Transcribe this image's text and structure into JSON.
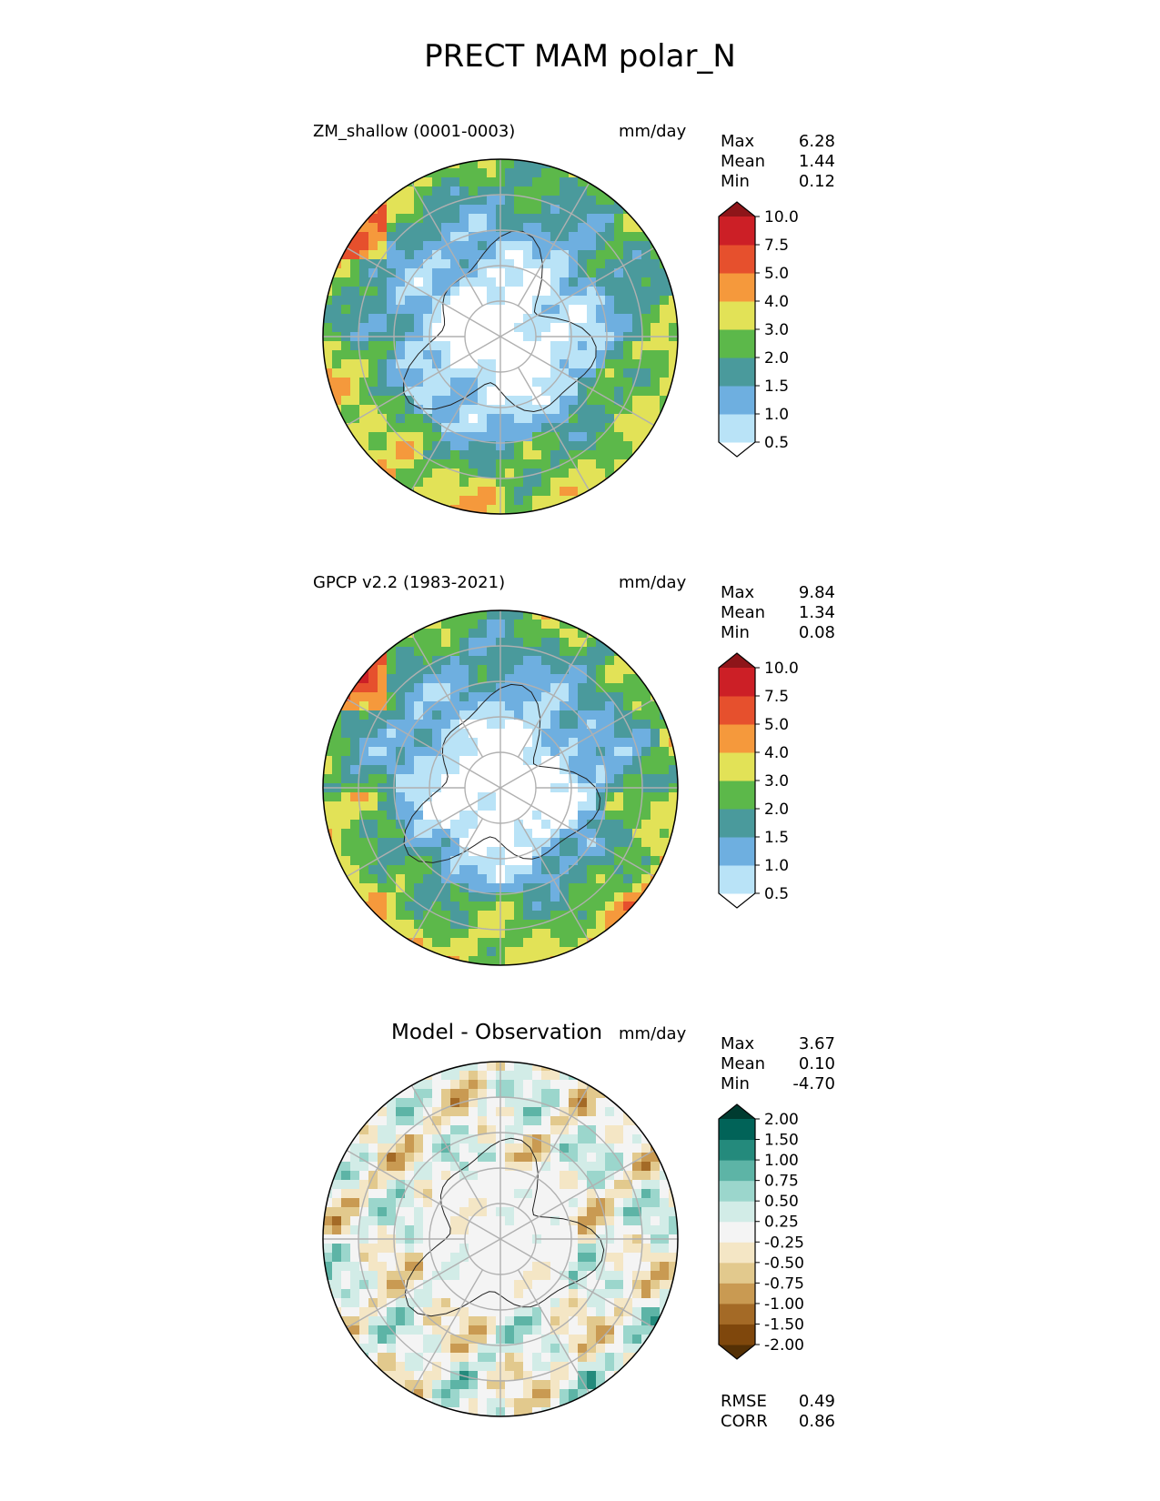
{
  "figure_title": "PRECT MAM polar_N",
  "panels": [
    {
      "id": "model",
      "title": "ZM_shallow (0001-0003)",
      "units": "mm/day",
      "stats": [
        {
          "label": "Max",
          "value": "6.28"
        },
        {
          "label": "Mean",
          "value": "1.44"
        },
        {
          "label": "Min",
          "value": "0.12"
        }
      ],
      "colorbar": {
        "ticks": [
          "10.0",
          "7.5",
          "5.0",
          "4.0",
          "3.0",
          "2.0",
          "1.5",
          "1.0",
          "0.5"
        ],
        "colors": [
          "#ffffff",
          "#b9e3f7",
          "#6eafe0",
          "#4a9a9c",
          "#5cb84a",
          "#e2e257",
          "#f5993c",
          "#e6502d",
          "#cc1f26",
          "#8e1519"
        ]
      }
    },
    {
      "id": "obs",
      "title": "GPCP v2.2 (1983-2021)",
      "units": "mm/day",
      "stats": [
        {
          "label": "Max",
          "value": "9.84"
        },
        {
          "label": "Mean",
          "value": "1.34"
        },
        {
          "label": "Min",
          "value": "0.08"
        }
      ],
      "colorbar": {
        "ticks": [
          "10.0",
          "7.5",
          "5.0",
          "4.0",
          "3.0",
          "2.0",
          "1.5",
          "1.0",
          "0.5"
        ],
        "colors": [
          "#ffffff",
          "#b9e3f7",
          "#6eafe0",
          "#4a9a9c",
          "#5cb84a",
          "#e2e257",
          "#f5993c",
          "#e6502d",
          "#cc1f26",
          "#8e1519"
        ]
      }
    },
    {
      "id": "diff",
      "title": "Model - Observation",
      "units": "mm/day",
      "stats": [
        {
          "label": "Max",
          "value": "3.67"
        },
        {
          "label": "Mean",
          "value": "0.10"
        },
        {
          "label": "Min",
          "value": "-4.70"
        }
      ],
      "colorbar": {
        "ticks": [
          "2.00",
          "1.50",
          "1.00",
          "0.75",
          "0.50",
          "0.25",
          "-0.25",
          "-0.50",
          "-0.75",
          "-1.00",
          "-1.50",
          "-2.00"
        ],
        "colors": [
          "#543005",
          "#7f470c",
          "#a46a26",
          "#c99a52",
          "#e2c98d",
          "#f4e6c5",
          "#f4f4f4",
          "#d2ece7",
          "#9bd6cc",
          "#5db4a6",
          "#248a7c",
          "#016358",
          "#003b30"
        ]
      },
      "metrics": [
        {
          "label": "RMSE",
          "value": "0.49"
        },
        {
          "label": "CORR",
          "value": "0.86"
        }
      ]
    }
  ],
  "chart_data": {
    "type": "heatmap",
    "projection": "north polar stereographic",
    "variable": "PRECT",
    "season": "MAM",
    "region": "polar_N",
    "units": "mm/day",
    "maps": [
      {
        "name": "ZM_shallow (0001-0003)",
        "max": 6.28,
        "mean": 1.44,
        "min": 0.12,
        "levels": [
          0.5,
          1.0,
          1.5,
          2.0,
          3.0,
          4.0,
          5.0,
          7.5,
          10.0
        ]
      },
      {
        "name": "GPCP v2.2 (1983-2021)",
        "max": 9.84,
        "mean": 1.34,
        "min": 0.08,
        "levels": [
          0.5,
          1.0,
          1.5,
          2.0,
          3.0,
          4.0,
          5.0,
          7.5,
          10.0
        ]
      },
      {
        "name": "Model - Observation",
        "max": 3.67,
        "mean": 0.1,
        "min": -4.7,
        "rmse": 0.49,
        "corr": 0.86,
        "levels": [
          -2.0,
          -1.5,
          -1.0,
          -0.75,
          -0.5,
          -0.25,
          0.25,
          0.5,
          0.75,
          1.0,
          1.5,
          2.0
        ]
      }
    ],
    "grid": true
  }
}
